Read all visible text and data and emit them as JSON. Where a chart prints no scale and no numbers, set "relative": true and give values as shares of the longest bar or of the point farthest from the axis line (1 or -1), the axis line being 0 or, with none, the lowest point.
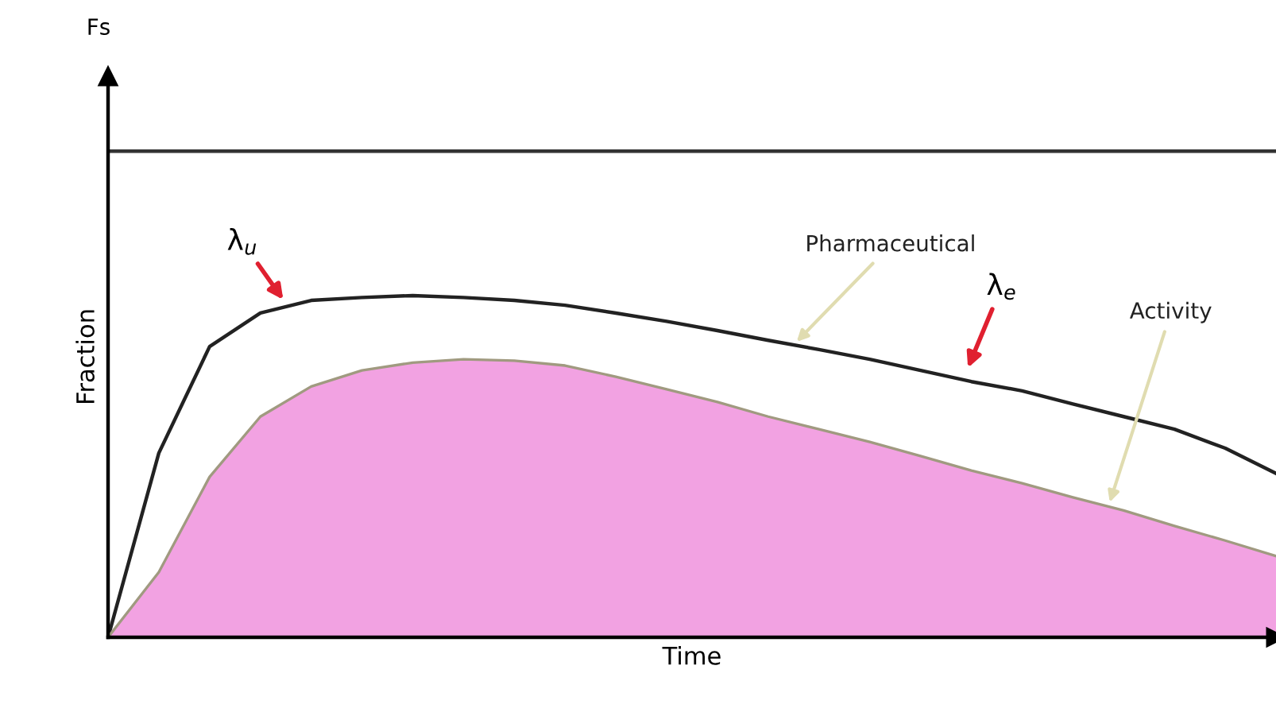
{
  "chart_data": {
    "type": "line",
    "relative": true,
    "ylabel": "Fraction",
    "xlabel": "Time",
    "categories": [
      null,
      null,
      null,
      null,
      null,
      null,
      null,
      null,
      null,
      null,
      null,
      null,
      null,
      null,
      null,
      null,
      null,
      null,
      null,
      null,
      null,
      null,
      null,
      null
    ],
    "series": [
      {
        "color": "#333333",
        "values": [
          1,
          1,
          1,
          1,
          1,
          1,
          1,
          1,
          1,
          1,
          1,
          1,
          1,
          1,
          1,
          1,
          1,
          1,
          1,
          1,
          1,
          1,
          1,
          1
        ]
      },
      {
        "name": "Pharmaceutical",
        "color": "#222222",
        "values": [
          0,
          0.379,
          0.598,
          0.667,
          0.693,
          0.699,
          0.703,
          0.699,
          0.693,
          0.683,
          0.667,
          0.65,
          0.631,
          0.611,
          0.592,
          0.572,
          0.549,
          0.526,
          0.507,
          0.48,
          0.454,
          0.428,
          0.389,
          0.337
        ]
      },
      {
        "type": "area",
        "name": "Activity",
        "color": "#f2a2e2",
        "values": [
          0,
          0.134,
          0.33,
          0.454,
          0.516,
          0.549,
          0.565,
          0.572,
          0.569,
          0.559,
          0.536,
          0.51,
          0.484,
          0.454,
          0.428,
          0.402,
          0.373,
          0.343,
          0.317,
          0.288,
          0.261,
          0.229,
          0.199,
          0.167
        ]
      }
    ],
    "annotations": [
      "Fs",
      "λ$_{u}$",
      "λ$_{e}$"
    ]
  }
}
